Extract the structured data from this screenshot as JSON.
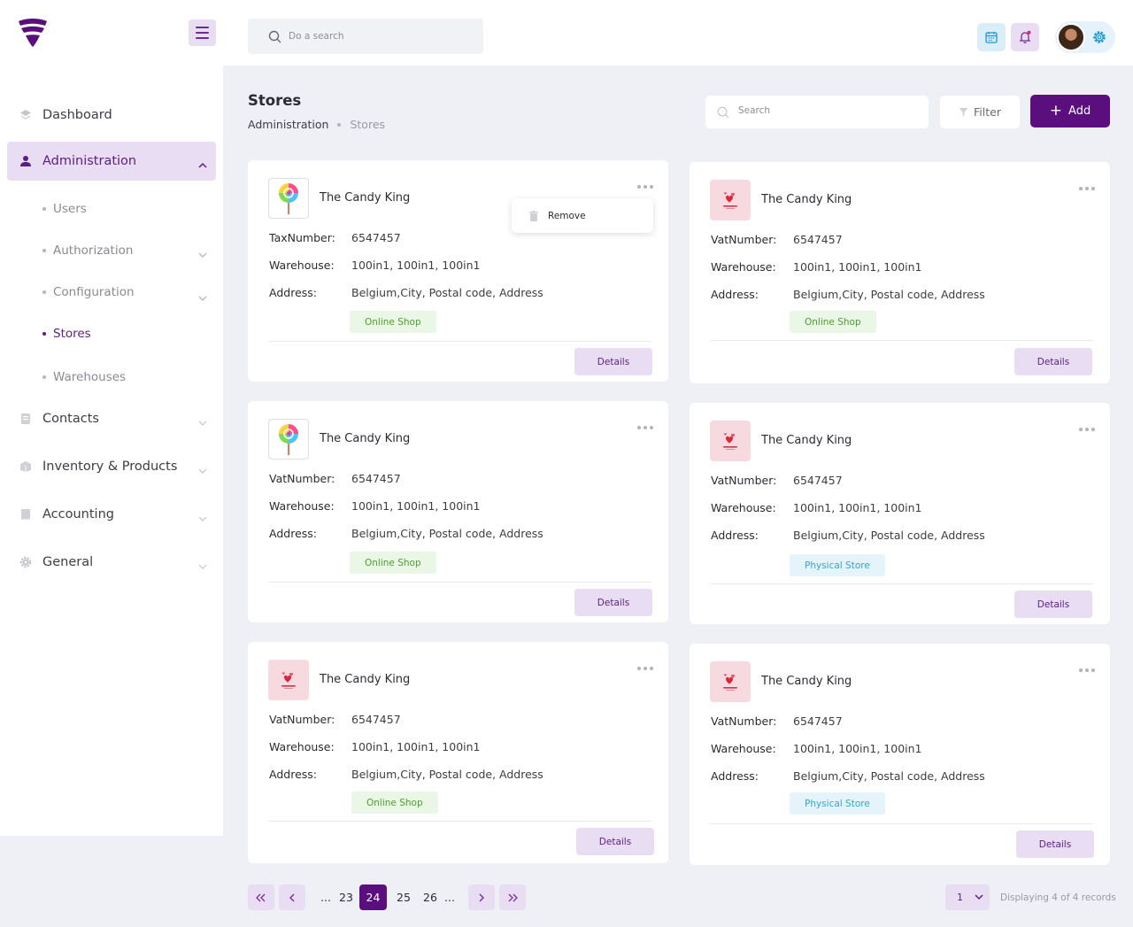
{
  "colors": {
    "brand": "#5b0f7e",
    "brand_light": "#e9ddf3",
    "online_tag": "#4aa02c",
    "physical_tag": "#30a6d8"
  },
  "sidebar": {
    "items": [
      {
        "label": "Dashboard",
        "icon": "dashboard-icon"
      },
      {
        "label": "Administration",
        "icon": "user-icon"
      },
      {
        "label": "Contacts",
        "icon": "contacts-icon"
      },
      {
        "label": "Inventory & Products",
        "icon": "box-icon"
      },
      {
        "label": "Accounting",
        "icon": "receipt-icon"
      },
      {
        "label": "General",
        "icon": "gear-icon"
      }
    ],
    "sub_items": [
      {
        "label": "Users"
      },
      {
        "label": "Authorization"
      },
      {
        "label": "Configuration"
      },
      {
        "label": "Stores"
      },
      {
        "label": "Warehouses"
      }
    ]
  },
  "topbar": {
    "search_placeholder": "Do a search"
  },
  "page": {
    "title": "Stores",
    "breadcrumb": [
      "Administration",
      "Stores"
    ],
    "search_placeholder": "Search",
    "filter_label": "Filter",
    "add_label": "Add"
  },
  "popup": {
    "remove_label": "Remove"
  },
  "cards": [
    {
      "name": "The Candy King",
      "logo": "lollipop-logo",
      "num_label": "TaxNumber:",
      "num_value": "6547457",
      "warehouse_label": "Warehouse:",
      "warehouse": "100in1, 100in1, 100in1",
      "address_label": "Address:",
      "address": "Belgium,City, Postal code, Address",
      "tag": "Online Shop",
      "details": "Details"
    },
    {
      "name": "The Candy King",
      "logo": "hearts-logo",
      "num_label": "VatNumber:",
      "num_value": "6547457",
      "warehouse_label": "Warehouse:",
      "warehouse": "100in1, 100in1, 100in1",
      "address_label": "Address:",
      "address": "Belgium,City, Postal code, Address",
      "tag": "Online Shop",
      "details": "Details"
    },
    {
      "name": "The Candy King",
      "logo": "lollipop-logo",
      "num_label": "VatNumber:",
      "num_value": "6547457",
      "warehouse_label": "Warehouse:",
      "warehouse": "100in1, 100in1, 100in1",
      "address_label": "Address:",
      "address": "Belgium,City, Postal code, Address",
      "tag": "Online Shop",
      "details": "Details"
    },
    {
      "name": "The Candy King",
      "logo": "hearts-logo",
      "num_label": "VatNumber:",
      "num_value": "6547457",
      "warehouse_label": "Warehouse:",
      "warehouse": "100in1, 100in1, 100in1",
      "address_label": "Address:",
      "address": "Belgium,City, Postal code, Address",
      "tag": "Physical Store",
      "details": "Details"
    },
    {
      "name": "The Candy King",
      "logo": "hearts-logo",
      "num_label": "VatNumber:",
      "num_value": "6547457",
      "warehouse_label": "Warehouse:",
      "warehouse": "100in1, 100in1, 100in1",
      "address_label": "Address:",
      "address": "Belgium,City, Postal code, Address",
      "tag": "Online Shop",
      "details": "Details"
    },
    {
      "name": "The Candy King",
      "logo": "hearts-logo",
      "num_label": "VatNumber:",
      "num_value": "6547457",
      "warehouse_label": "Warehouse:",
      "warehouse": "100in1, 100in1, 100in1",
      "address_label": "Address:",
      "address": "Belgium,City, Postal code, Address",
      "tag": "Physical Store",
      "details": "Details"
    }
  ],
  "pagination": {
    "ellipsis": "...",
    "pages": [
      "23",
      "24",
      "25",
      "26"
    ],
    "current": "24",
    "per_page": "1",
    "records_text": "Displaying 4 of 4 records"
  }
}
